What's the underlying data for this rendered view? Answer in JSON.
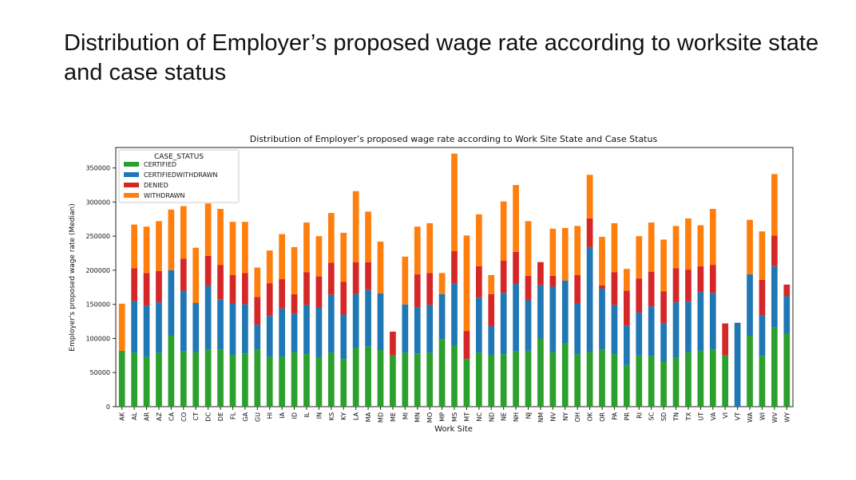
{
  "slide": {
    "title": "Distribution of Employer’s proposed wage rate according to worksite state and case status"
  },
  "chart_data": {
    "type": "bar",
    "stacked": true,
    "title": "Distribution of Employer’s proposed wage rate according to Work Site State and Case Status",
    "xlabel": "Work Site",
    "ylabel": "Employer's proposed wage rate (Median)",
    "ylim": [
      0,
      380000
    ],
    "yticks": [
      0,
      50000,
      100000,
      150000,
      200000,
      250000,
      300000,
      350000
    ],
    "legend": {
      "title": "CASE_STATUS",
      "position": "top-left"
    },
    "categories": [
      "AK",
      "AL",
      "AR",
      "AZ",
      "CA",
      "CO",
      "CT",
      "DC",
      "DE",
      "FL",
      "GA",
      "GU",
      "HI",
      "IA",
      "ID",
      "IL",
      "IN",
      "KS",
      "KY",
      "LA",
      "MA",
      "MD",
      "ME",
      "MI",
      "MN",
      "MO",
      "MP",
      "MS",
      "MT",
      "NC",
      "ND",
      "NE",
      "NH",
      "NJ",
      "NM",
      "NV",
      "NY",
      "OH",
      "OK",
      "OR",
      "PA",
      "PR",
      "RI",
      "SC",
      "SD",
      "TN",
      "TX",
      "UT",
      "VA",
      "VI",
      "VT",
      "WA",
      "WI",
      "WV",
      "WY"
    ],
    "series": [
      {
        "name": "CERTIFIED",
        "color": "#2ca02c",
        "values": [
          82000,
          79000,
          73000,
          79000,
          104000,
          81000,
          80000,
          84000,
          84000,
          76000,
          78000,
          84000,
          73000,
          73000,
          80000,
          77000,
          72000,
          79000,
          70000,
          86000,
          88000,
          83000,
          75000,
          79000,
          78000,
          79000,
          99000,
          89000,
          70000,
          79000,
          76000,
          77000,
          81000,
          82000,
          100000,
          80000,
          93000,
          77000,
          80000,
          84000,
          77000,
          61000,
          75000,
          74000,
          66000,
          72000,
          80000,
          82000,
          84000,
          75000,
          0,
          104000,
          74000,
          116000,
          107000
        ]
      },
      {
        "name": "CERTIFIEDWITHDRAWN",
        "color": "#1f77b4",
        "values": [
          0,
          76000,
          75000,
          74000,
          96000,
          89000,
          72000,
          93000,
          73000,
          76000,
          72000,
          36000,
          60000,
          71000,
          56000,
          72000,
          73000,
          85000,
          65000,
          79000,
          83000,
          83000,
          0,
          71000,
          68000,
          70000,
          66000,
          92000,
          0,
          81000,
          42000,
          90000,
          99000,
          74000,
          78000,
          96000,
          92000,
          75000,
          154000,
          89000,
          72000,
          58000,
          63000,
          73000,
          56000,
          81000,
          74000,
          86000,
          83000,
          0,
          123000,
          90000,
          60000,
          90000,
          55000
        ]
      },
      {
        "name": "DENIED",
        "color": "#d62728",
        "values": [
          0,
          48000,
          48000,
          46000,
          0,
          47000,
          0,
          44000,
          51000,
          41000,
          46000,
          41000,
          48000,
          43000,
          29000,
          48000,
          46000,
          47000,
          48000,
          47000,
          41000,
          0,
          35000,
          0,
          48000,
          47000,
          0,
          47000,
          41000,
          46000,
          47000,
          47000,
          47000,
          36000,
          34000,
          16000,
          0,
          41000,
          42000,
          5000,
          48000,
          51000,
          50000,
          51000,
          47000,
          50000,
          47000,
          38000,
          41000,
          47000,
          0,
          0,
          52000,
          45000,
          17000
        ]
      },
      {
        "name": "WITHDRAWN",
        "color": "#ff7f0e",
        "values": [
          69000,
          64000,
          68000,
          73000,
          89000,
          77000,
          81000,
          77000,
          82000,
          78000,
          75000,
          43000,
          48000,
          66000,
          69000,
          73000,
          59000,
          73000,
          72000,
          104000,
          74000,
          76000,
          0,
          70000,
          70000,
          73000,
          31000,
          143000,
          140000,
          76000,
          28000,
          87000,
          98000,
          80000,
          0,
          69000,
          77000,
          72000,
          64000,
          71000,
          72000,
          32000,
          62000,
          72000,
          76000,
          62000,
          75000,
          60000,
          82000,
          0,
          0,
          80000,
          71000,
          90000,
          0
        ]
      }
    ]
  }
}
